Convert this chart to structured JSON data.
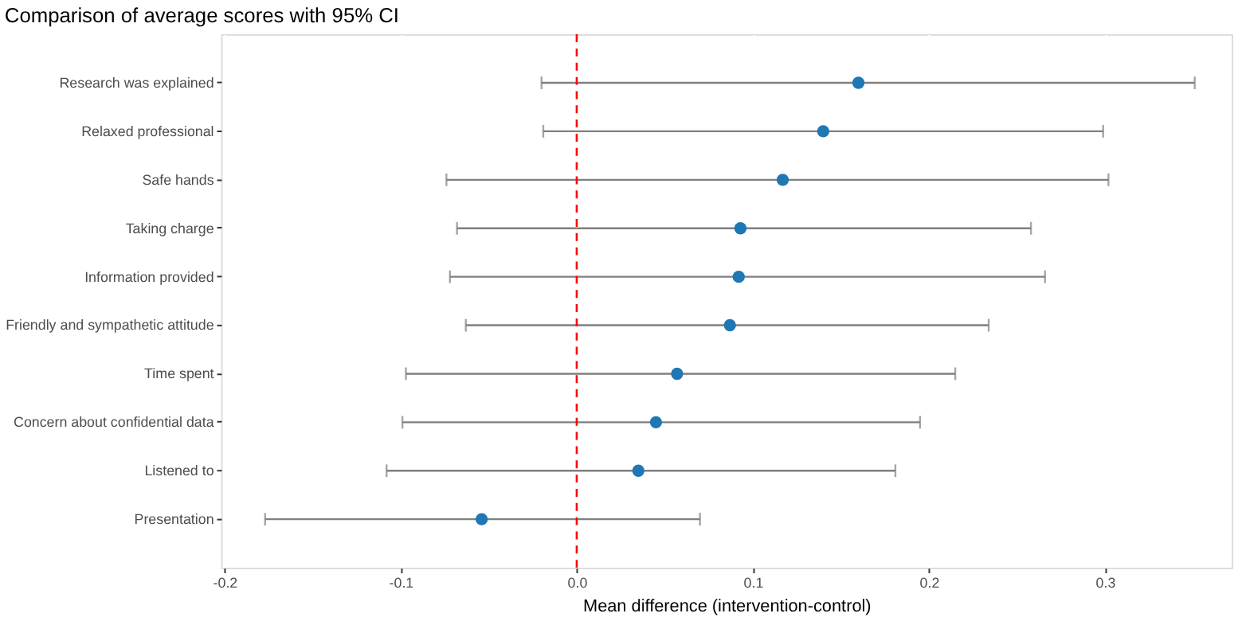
{
  "chart_data": {
    "type": "scatter",
    "orientation": "horizontal",
    "title": "Comparison of average scores with 95% CI",
    "xlabel": "Mean difference (intervention-control)",
    "categories": [
      "Research was explained",
      "Relaxed professional",
      "Safe hands",
      "Taking charge",
      "Information provided",
      "Friendly and sympathetic attitude",
      "Time spent",
      "Concern about confidential data",
      "Listened to",
      "Presentation"
    ],
    "values": [
      0.16,
      0.14,
      0.117,
      0.093,
      0.092,
      0.087,
      0.057,
      0.045,
      0.035,
      -0.054
    ],
    "errors": [
      [
        -0.02,
        0.351
      ],
      [
        -0.019,
        0.299
      ],
      [
        -0.074,
        0.302
      ],
      [
        -0.068,
        0.258
      ],
      [
        -0.072,
        0.266
      ],
      [
        -0.063,
        0.234
      ],
      [
        -0.097,
        0.215
      ],
      [
        -0.099,
        0.195
      ],
      [
        -0.108,
        0.181
      ],
      [
        -0.177,
        0.07
      ]
    ],
    "color": "#1f77b4",
    "marker": "circle",
    "xlim": [
      -0.202,
      0.372
    ],
    "xticks": [
      -0.2,
      -0.1,
      {
        "value": 0,
        "label": "0.0"
      },
      0.1,
      0.2,
      0.3
    ],
    "ref_lines": [
      {
        "axis": "x",
        "value": 0,
        "color": "#ff0000",
        "line_style": "dashed"
      }
    ],
    "grid": "x"
  }
}
